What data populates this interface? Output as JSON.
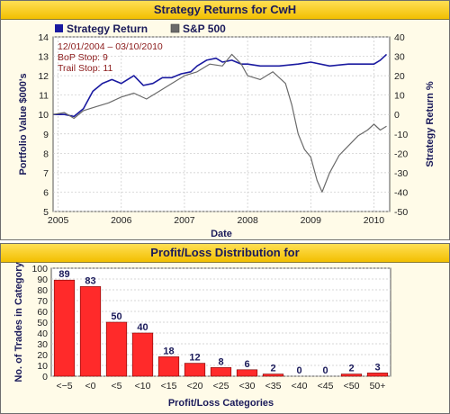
{
  "top_title": "Strategy Returns for CwH",
  "bottom_title": "Profit/Loss Distribution for",
  "legend": {
    "strategy": "Strategy Return",
    "sp500": "S&P 500"
  },
  "info_lines": [
    "12/01/2004 – 03/10/2010",
    "BoP Stop: 9",
    "Trail Stop: 11"
  ],
  "colors": {
    "strategy": "#1a1aa0",
    "sp500": "#6a6a6a",
    "bar": "#ff2a2a",
    "info": "#8b1a1a",
    "label": "#1a1a5a"
  },
  "chart_data": [
    {
      "type": "line",
      "title": "Strategy Returns for CwH",
      "xlabel": "Date",
      "ylabel": "Portfolio Value $000's",
      "y2label": "Strategy Return %",
      "x_ticks": [
        "2005",
        "2006",
        "2007",
        "2008",
        "2009",
        "2010"
      ],
      "y_ticks": [
        5,
        6,
        7,
        8,
        9,
        10,
        11,
        12,
        13,
        14
      ],
      "y2_ticks": [
        -50,
        -40,
        -30,
        -20,
        -10,
        0,
        10,
        20,
        30,
        40
      ],
      "xlim": [
        2004.92,
        2010.25
      ],
      "ylim": [
        5,
        14
      ],
      "grid": true,
      "series": [
        {
          "name": "Strategy Return",
          "x": [
            2004.92,
            2005.1,
            2005.25,
            2005.4,
            2005.55,
            2005.7,
            2005.85,
            2006.0,
            2006.2,
            2006.35,
            2006.5,
            2006.65,
            2006.8,
            2006.95,
            2007.1,
            2007.2,
            2007.35,
            2007.5,
            2007.6,
            2007.75,
            2007.9,
            2008.0,
            2008.2,
            2008.5,
            2008.8,
            2009.0,
            2009.3,
            2009.6,
            2009.8,
            2010.0,
            2010.1,
            2010.2
          ],
          "values": [
            10.0,
            10.0,
            9.9,
            10.3,
            11.2,
            11.6,
            11.8,
            11.6,
            12.0,
            11.5,
            11.6,
            11.9,
            11.9,
            12.1,
            12.2,
            12.5,
            12.8,
            12.9,
            12.7,
            12.8,
            12.6,
            12.6,
            12.5,
            12.5,
            12.6,
            12.7,
            12.5,
            12.6,
            12.6,
            12.6,
            12.8,
            13.1
          ]
        },
        {
          "name": "S&P 500",
          "x": [
            2004.92,
            2005.1,
            2005.25,
            2005.4,
            2005.6,
            2005.8,
            2006.0,
            2006.2,
            2006.4,
            2006.6,
            2006.8,
            2007.0,
            2007.2,
            2007.4,
            2007.6,
            2007.75,
            2007.9,
            2008.0,
            2008.2,
            2008.4,
            2008.6,
            2008.7,
            2008.8,
            2008.9,
            2009.0,
            2009.1,
            2009.18,
            2009.3,
            2009.45,
            2009.6,
            2009.75,
            2009.9,
            2010.0,
            2010.1,
            2010.2
          ],
          "values": [
            10.0,
            10.1,
            9.8,
            10.2,
            10.4,
            10.6,
            10.9,
            11.1,
            10.8,
            11.2,
            11.6,
            12.0,
            12.2,
            12.6,
            12.5,
            13.1,
            12.6,
            12.0,
            11.8,
            12.2,
            11.6,
            10.5,
            9.0,
            8.2,
            7.8,
            6.6,
            6.0,
            7.0,
            7.9,
            8.4,
            8.9,
            9.2,
            9.5,
            9.2,
            9.4
          ]
        }
      ]
    },
    {
      "type": "bar",
      "title": "Profit/Loss Distribution for",
      "xlabel": "Profit/Loss Categories",
      "ylabel": "No. of Trades in Category",
      "categories": [
        "<−5",
        "<0",
        "<5",
        "<10",
        "<15",
        "<20",
        "<25",
        "<30",
        "<35",
        "<40",
        "<45",
        "<50",
        "50+"
      ],
      "values": [
        89,
        83,
        50,
        40,
        18,
        12,
        8,
        6,
        2,
        0,
        0,
        2,
        3
      ],
      "y_ticks": [
        0,
        10,
        20,
        30,
        40,
        50,
        60,
        70,
        80,
        90,
        100
      ],
      "ylim": [
        0,
        100
      ],
      "grid": true
    }
  ]
}
